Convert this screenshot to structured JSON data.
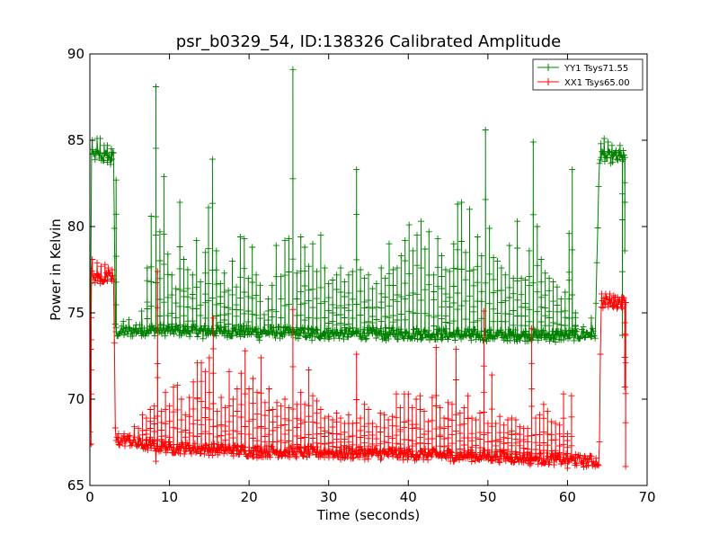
{
  "chart_data": {
    "type": "line",
    "title": "psr_b0329_54, ID:138326 Calibrated Amplitude",
    "xlabel": "Time (seconds)",
    "ylabel": "Power in Kelvin",
    "xlim": [
      0,
      70
    ],
    "ylim": [
      65,
      90
    ],
    "xticks": [
      0,
      10,
      20,
      30,
      40,
      50,
      60,
      70
    ],
    "yticks": [
      65,
      70,
      75,
      80,
      85,
      90
    ],
    "grid": false,
    "legend_position": "top-right",
    "markers": "plus",
    "series": [
      {
        "name": "YY1 Tsys71.55",
        "color": "#008000",
        "base": [
          [
            0,
            68
          ],
          [
            0.2,
            84.1
          ],
          [
            1,
            84.1
          ],
          [
            2,
            84.0
          ],
          [
            3,
            84.0
          ],
          [
            3.2,
            73.9
          ],
          [
            5,
            73.9
          ],
          [
            6,
            74.0
          ],
          [
            10,
            74.0
          ],
          [
            20,
            73.9
          ],
          [
            30,
            73.8
          ],
          [
            40,
            73.8
          ],
          [
            50,
            73.7
          ],
          [
            60,
            73.7
          ],
          [
            63.5,
            73.8
          ],
          [
            64,
            84.0
          ],
          [
            66,
            84.0
          ],
          [
            67.2,
            84.0
          ]
        ],
        "spikes": [
          [
            0.3,
            85.0
          ],
          [
            0.9,
            85.1
          ],
          [
            1.3,
            85.1
          ],
          [
            1.8,
            84.7
          ],
          [
            2.2,
            84.7
          ],
          [
            2.7,
            84.5
          ],
          [
            3.3,
            82.7
          ],
          [
            4.2,
            74.5
          ],
          [
            4.9,
            74.6
          ],
          [
            5.8,
            74.3
          ],
          [
            6.5,
            75.1
          ],
          [
            7.2,
            77.6
          ],
          [
            7.7,
            80.6
          ],
          [
            8.3,
            88.1
          ],
          [
            8.8,
            79.7
          ],
          [
            9.3,
            82.9
          ],
          [
            9.8,
            78.4
          ],
          [
            10.3,
            77.2
          ],
          [
            10.8,
            76.4
          ],
          [
            11.3,
            81.4
          ],
          [
            11.8,
            78.1
          ],
          [
            12.3,
            77.5
          ],
          [
            12.9,
            77.2
          ],
          [
            13.4,
            79.2
          ],
          [
            13.9,
            76.8
          ],
          [
            14.5,
            78.5
          ],
          [
            14.9,
            81.1
          ],
          [
            15.4,
            83.9
          ],
          [
            15.9,
            78.6
          ],
          [
            16.4,
            76.7
          ],
          [
            16.9,
            77.3
          ],
          [
            17.4,
            76.3
          ],
          [
            17.9,
            78.0
          ],
          [
            18.4,
            76.5
          ],
          [
            18.9,
            79.4
          ],
          [
            19.4,
            79.3
          ],
          [
            19.9,
            77.0
          ],
          [
            20.4,
            78.8
          ],
          [
            20.9,
            77.2
          ],
          [
            21.4,
            76.6
          ],
          [
            21.9,
            74.9
          ],
          [
            22.4,
            75.8
          ],
          [
            22.9,
            76.6
          ],
          [
            23.4,
            78.9
          ],
          [
            24.0,
            77.1
          ],
          [
            24.5,
            79.2
          ],
          [
            25.0,
            79.3
          ],
          [
            25.5,
            89.1
          ],
          [
            26.0,
            77.3
          ],
          [
            26.5,
            79.4
          ],
          [
            27.0,
            78.8
          ],
          [
            27.5,
            77.7
          ],
          [
            28.0,
            79.0
          ],
          [
            28.5,
            77.4
          ],
          [
            29.0,
            79.5
          ],
          [
            29.5,
            77.6
          ],
          [
            30.0,
            76.7
          ],
          [
            30.5,
            76.9
          ],
          [
            31.0,
            77.2
          ],
          [
            31.5,
            77.6
          ],
          [
            32.0,
            76.8
          ],
          [
            32.5,
            77.2
          ],
          [
            33.0,
            77.4
          ],
          [
            33.5,
            83.3
          ],
          [
            34.0,
            77.5
          ],
          [
            34.5,
            77.0
          ],
          [
            35.0,
            77.2
          ],
          [
            35.5,
            76.4
          ],
          [
            36.0,
            76.7
          ],
          [
            36.6,
            77.6
          ],
          [
            37.1,
            77.0
          ],
          [
            37.6,
            79.0
          ],
          [
            38.1,
            77.5
          ],
          [
            38.6,
            77.6
          ],
          [
            39.1,
            78.3
          ],
          [
            39.6,
            79.2
          ],
          [
            40.1,
            80.1
          ],
          [
            40.6,
            78.6
          ],
          [
            41.1,
            79.5
          ],
          [
            41.6,
            80.3
          ],
          [
            42.1,
            78.7
          ],
          [
            42.6,
            79.7
          ],
          [
            43.2,
            77.2
          ],
          [
            43.7,
            79.3
          ],
          [
            44.2,
            78.3
          ],
          [
            44.7,
            77.5
          ],
          [
            45.2,
            77.4
          ],
          [
            45.7,
            79.0
          ],
          [
            46.2,
            81.3
          ],
          [
            46.7,
            81.4
          ],
          [
            47.2,
            78.5
          ],
          [
            47.7,
            81.0
          ],
          [
            48.2,
            77.5
          ],
          [
            48.7,
            79.4
          ],
          [
            49.2,
            78.3
          ],
          [
            49.7,
            85.6
          ],
          [
            50.2,
            79.9
          ],
          [
            50.7,
            78.2
          ],
          [
            51.2,
            78.0
          ],
          [
            51.7,
            77.6
          ],
          [
            52.2,
            77.2
          ],
          [
            52.7,
            78.9
          ],
          [
            53.2,
            77.0
          ],
          [
            53.7,
            80.3
          ],
          [
            54.2,
            77.0
          ],
          [
            54.7,
            76.9
          ],
          [
            55.2,
            78.6
          ],
          [
            55.7,
            84.9
          ],
          [
            56.2,
            80.0
          ],
          [
            56.7,
            78.1
          ],
          [
            57.2,
            77.3
          ],
          [
            57.7,
            77.0
          ],
          [
            58.2,
            76.8
          ],
          [
            58.7,
            76.5
          ],
          [
            59.2,
            75.8
          ],
          [
            59.7,
            76.2
          ],
          [
            60.2,
            79.6
          ],
          [
            60.6,
            83.3
          ],
          [
            61.0,
            75.0
          ],
          [
            62.0,
            74.2
          ],
          [
            63.0,
            74.7
          ],
          [
            64.2,
            84.8
          ],
          [
            64.6,
            85.1
          ],
          [
            65.1,
            84.9
          ],
          [
            65.6,
            84.7
          ],
          [
            66.1,
            84.4
          ],
          [
            66.6,
            84.7
          ],
          [
            67.0,
            84.4
          ]
        ],
        "lows": [
          [
            2.6,
            83.6
          ],
          [
            14.2,
            73.5
          ],
          [
            21.3,
            73.4
          ],
          [
            27.9,
            73.4
          ],
          [
            37.2,
            73.4
          ],
          [
            47.9,
            73.4
          ],
          [
            52.8,
            73.4
          ],
          [
            58.5,
            73.3
          ],
          [
            66.9,
            73.7
          ],
          [
            67.2,
            78.6
          ]
        ]
      },
      {
        "name": "XX1 Tsys65.00",
        "color": "#ff0000",
        "base": [
          [
            0,
            67.6
          ],
          [
            0.2,
            77.1
          ],
          [
            1,
            77.0
          ],
          [
            2,
            77.0
          ],
          [
            3,
            77.0
          ],
          [
            3.2,
            67.6
          ],
          [
            5,
            67.6
          ],
          [
            6,
            67.4
          ],
          [
            10,
            67.2
          ],
          [
            20,
            67.0
          ],
          [
            30,
            66.9
          ],
          [
            40,
            66.8
          ],
          [
            50,
            66.7
          ],
          [
            60,
            66.5
          ],
          [
            62,
            66.4
          ],
          [
            64,
            66.4
          ],
          [
            64.2,
            75.6
          ],
          [
            66,
            75.6
          ],
          [
            67.2,
            75.6
          ]
        ],
        "spikes": [
          [
            0.3,
            78.1
          ],
          [
            0.9,
            77.9
          ],
          [
            1.4,
            77.7
          ],
          [
            1.9,
            77.8
          ],
          [
            2.3,
            77.6
          ],
          [
            2.8,
            77.5
          ],
          [
            3.6,
            68.0
          ],
          [
            4.3,
            68.0
          ],
          [
            5.0,
            67.9
          ],
          [
            5.6,
            68.4
          ],
          [
            6.1,
            68.3
          ],
          [
            6.6,
            69.1
          ],
          [
            7.1,
            68.9
          ],
          [
            7.6,
            69.4
          ],
          [
            8.1,
            69.6
          ],
          [
            8.5,
            77.4
          ],
          [
            9.0,
            69.3
          ],
          [
            9.5,
            70.4
          ],
          [
            10.0,
            69.6
          ],
          [
            10.5,
            70.7
          ],
          [
            11.0,
            70.8
          ],
          [
            11.5,
            70.0
          ],
          [
            12.0,
            69.1
          ],
          [
            12.5,
            70.1
          ],
          [
            13.0,
            71.0
          ],
          [
            13.5,
            72.1
          ],
          [
            14.0,
            72.1
          ],
          [
            14.5,
            71.6
          ],
          [
            15.0,
            72.4
          ],
          [
            15.5,
            74.7
          ],
          [
            16.0,
            69.3
          ],
          [
            16.5,
            70.1
          ],
          [
            17.0,
            69.5
          ],
          [
            17.5,
            71.6
          ],
          [
            18.0,
            70.0
          ],
          [
            18.5,
            70.6
          ],
          [
            19.0,
            71.5
          ],
          [
            19.5,
            72.8
          ],
          [
            20.0,
            70.6
          ],
          [
            20.5,
            71.2
          ],
          [
            21.0,
            70.4
          ],
          [
            21.5,
            72.4
          ],
          [
            22.0,
            69.8
          ],
          [
            22.5,
            70.6
          ],
          [
            23.0,
            69.4
          ],
          [
            23.5,
            69.8
          ],
          [
            24.0,
            69.6
          ],
          [
            24.5,
            70.0
          ],
          [
            25.0,
            69.5
          ],
          [
            25.5,
            75.2
          ],
          [
            26.0,
            69.7
          ],
          [
            26.5,
            70.4
          ],
          [
            27.0,
            69.7
          ],
          [
            27.5,
            71.7
          ],
          [
            28.0,
            70.2
          ],
          [
            28.5,
            69.9
          ],
          [
            29.0,
            69.4
          ],
          [
            29.5,
            68.9
          ],
          [
            30.0,
            69.0
          ],
          [
            30.5,
            68.8
          ],
          [
            31.0,
            69.2
          ],
          [
            31.5,
            68.9
          ],
          [
            32.0,
            68.6
          ],
          [
            32.5,
            69.1
          ],
          [
            33.0,
            68.6
          ],
          [
            33.5,
            72.6
          ],
          [
            34.0,
            68.9
          ],
          [
            34.5,
            69.7
          ],
          [
            35.0,
            69.4
          ],
          [
            35.5,
            68.6
          ],
          [
            36.0,
            68.4
          ],
          [
            36.5,
            69.2
          ],
          [
            37.0,
            69.1
          ],
          [
            37.5,
            68.8
          ],
          [
            38.0,
            69.0
          ],
          [
            38.5,
            70.3
          ],
          [
            39.0,
            69.5
          ],
          [
            39.5,
            70.3
          ],
          [
            40.0,
            70.3
          ],
          [
            40.5,
            69.5
          ],
          [
            41.0,
            70.0
          ],
          [
            41.5,
            70.2
          ],
          [
            42.0,
            69.3
          ],
          [
            42.5,
            68.7
          ],
          [
            43.0,
            70.1
          ],
          [
            43.5,
            73.0
          ],
          [
            44.0,
            69.5
          ],
          [
            44.5,
            68.9
          ],
          [
            45.0,
            69.8
          ],
          [
            45.5,
            69.7
          ],
          [
            46.0,
            72.9
          ],
          [
            46.5,
            69.2
          ],
          [
            47.0,
            69.5
          ],
          [
            47.5,
            70.2
          ],
          [
            48.0,
            68.9
          ],
          [
            48.5,
            68.8
          ],
          [
            49.0,
            69.2
          ],
          [
            49.5,
            75.1
          ],
          [
            50.0,
            68.6
          ],
          [
            50.5,
            71.4
          ],
          [
            51.0,
            68.6
          ],
          [
            51.5,
            69.0
          ],
          [
            52.0,
            68.5
          ],
          [
            52.5,
            68.8
          ],
          [
            53.0,
            68.9
          ],
          [
            53.5,
            68.8
          ],
          [
            54.0,
            68.4
          ],
          [
            54.5,
            68.3
          ],
          [
            55.0,
            68.3
          ],
          [
            55.5,
            74.1
          ],
          [
            56.0,
            68.9
          ],
          [
            56.5,
            69.1
          ],
          [
            57.0,
            69.7
          ],
          [
            57.5,
            69.3
          ],
          [
            58.0,
            68.7
          ],
          [
            58.5,
            68.6
          ],
          [
            59.0,
            68.5
          ],
          [
            59.5,
            70.3
          ],
          [
            60.0,
            68.0
          ],
          [
            60.5,
            70.2
          ],
          [
            61.0,
            66.8
          ],
          [
            62.0,
            66.6
          ],
          [
            63.0,
            66.7
          ],
          [
            64.3,
            76.1
          ],
          [
            64.8,
            76.1
          ],
          [
            65.3,
            76.1
          ],
          [
            65.8,
            76.0
          ],
          [
            66.3,
            75.9
          ],
          [
            66.8,
            75.9
          ]
        ],
        "lows": [
          [
            0.15,
            67.4
          ],
          [
            8.3,
            66.4
          ],
          [
            21.0,
            66.6
          ],
          [
            31.5,
            66.5
          ],
          [
            45.3,
            66.4
          ],
          [
            55.3,
            66.2
          ],
          [
            60.0,
            66.0
          ],
          [
            67.2,
            70.7
          ],
          [
            67.3,
            66.1
          ]
        ]
      }
    ]
  }
}
